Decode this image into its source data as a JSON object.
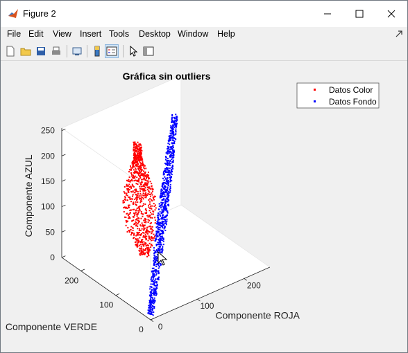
{
  "window": {
    "title": "Figure 2",
    "controls": {
      "minimize": "minimize",
      "maximize": "maximize",
      "close": "close"
    }
  },
  "menu": {
    "items": [
      "File",
      "Edit",
      "View",
      "Insert",
      "Tools",
      "Desktop",
      "Window",
      "Help"
    ]
  },
  "toolbar": {
    "buttons": [
      "new-figure-icon",
      "open-file-icon",
      "save-icon",
      "print-icon",
      "link-plot-icon",
      "colorbar-icon",
      "legend-icon",
      "pointer-icon",
      "property-inspector-icon"
    ]
  },
  "chart_data": {
    "type": "scatter",
    "projection": "3d",
    "title": "Gráfica sin outliers",
    "xlabel": "Componente ROJA",
    "ylabel": "Componente VERDE",
    "zlabel": "Componente AZUL",
    "xlim": [
      0,
      255
    ],
    "ylim": [
      0,
      255
    ],
    "zlim": [
      0,
      255
    ],
    "xticks": [
      "0",
      "100",
      "200"
    ],
    "yticks": [
      "0",
      "100",
      "200"
    ],
    "zticks": [
      "0",
      "50",
      "100",
      "150",
      "200",
      "250"
    ],
    "legend_position": "top-right",
    "series": [
      {
        "name": "Datos Color",
        "color": "#ff0000",
        "marker": "dot",
        "cluster": {
          "r_range": [
            10,
            120
          ],
          "g_range": [
            190,
            255
          ],
          "b_range": [
            0,
            250
          ]
        }
      },
      {
        "name": "Datos Fondo",
        "color": "#0000ff",
        "marker": "dot",
        "cluster": {
          "r_range": [
            0,
            180
          ],
          "g_range": [
            0,
            200
          ],
          "b_range": [
            20,
            255
          ]
        }
      }
    ]
  },
  "colors": {
    "axis_box": "#ffffff",
    "plot_bg": "#f0f0f0"
  }
}
